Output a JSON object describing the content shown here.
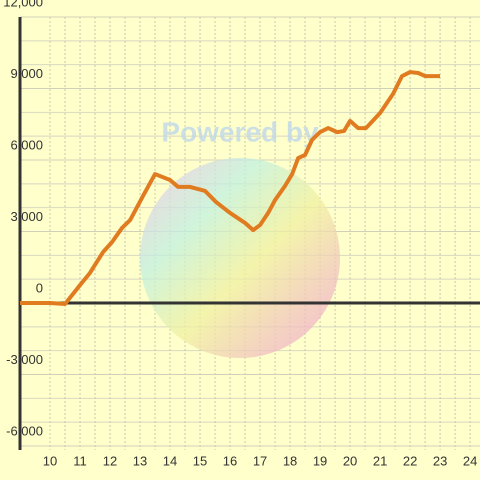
{
  "chart_data": {
    "type": "line",
    "watermark": "Powered by",
    "x": [
      9,
      10,
      10.5,
      11,
      11.33,
      11.77,
      12.07,
      12.4,
      12.67,
      13.1,
      13.5,
      14,
      14.27,
      14.67,
      15.17,
      15.53,
      16,
      16.5,
      16.77,
      17,
      17.27,
      17.5,
      17.83,
      18.07,
      18.27,
      18.5,
      18.73,
      19,
      19.27,
      19.57,
      19.8,
      20,
      20.27,
      20.53,
      21,
      21.43,
      21.73,
      22,
      22.27,
      22.5,
      23
    ],
    "series": [
      {
        "color": "#e07b20",
        "values": [
          0,
          0,
          -40,
          750,
          1260,
          2140,
          2560,
          3150,
          3480,
          4490,
          5410,
          5160,
          4870,
          4870,
          4700,
          4240,
          3780,
          3360,
          3060,
          3270,
          3780,
          4320,
          4910,
          5410,
          6080,
          6210,
          6840,
          7170,
          7340,
          7170,
          7220,
          7640,
          7340,
          7340,
          7970,
          8770,
          9520,
          9690,
          9650,
          9520,
          9520
        ]
      }
    ],
    "xlim": [
      9,
      24.33
    ],
    "xticks": [
      10,
      11,
      12,
      13,
      14,
      15,
      16,
      17,
      18,
      19,
      20,
      21,
      22,
      23,
      24
    ],
    "ylim": [
      -6000,
      12000
    ],
    "yticks": [
      {
        "value": -6000,
        "label": "-6,000"
      },
      {
        "value": -3000,
        "label": "-3,000"
      },
      0,
      {
        "value": 3000,
        "label": "3,000"
      },
      {
        "value": 6000,
        "label": "6,000"
      },
      {
        "value": 9000,
        "label": "9,000"
      },
      {
        "value": 12000,
        "label": "12,000"
      }
    ],
    "grid": true
  }
}
